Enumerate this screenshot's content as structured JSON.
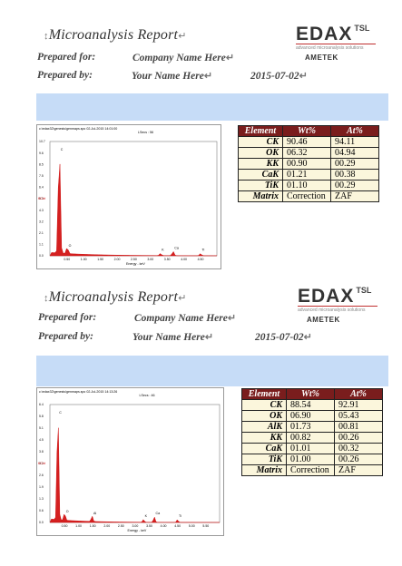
{
  "reports": [
    {
      "title": "Microanalysis Report",
      "prepared_for_label": "Prepared for:",
      "company": "Company Name Here",
      "prepared_by_label": "Prepared by:",
      "name": "Your Name Here",
      "date": "2015-07-02",
      "logo": {
        "brand": "EDAX",
        "suffix": "TSL",
        "tagline": "advanced microanalysis solutions",
        "parent": "AMETEK"
      },
      "spectrum_header": "c:\\edax32\\genesis\\genmaps.spc 02-Jul-2015 14:01:00",
      "spectrum_lsec": "LSecs : 56",
      "table": {
        "headers": [
          "Element",
          "Wt%",
          "At%"
        ],
        "rows": [
          [
            "CK",
            "90.46",
            "94.11"
          ],
          [
            "OK",
            "06.32",
            "04.94"
          ],
          [
            "KK",
            "00.90",
            "00.29"
          ],
          [
            "CaK",
            "01.21",
            "00.38"
          ],
          [
            "TiK",
            "01.10",
            "00.29"
          ],
          [
            "Matrix",
            "Correction",
            "ZAF"
          ]
        ]
      }
    },
    {
      "title": "Microanalysis Report",
      "prepared_for_label": "Prepared for:",
      "company": "Company Name Here",
      "prepared_by_label": "Prepared by:",
      "name": "Your Name Here",
      "date": "2015-07-02",
      "logo": {
        "brand": "EDAX",
        "suffix": "TSL",
        "tagline": "advanced microanalysis solutions",
        "parent": "AMETEK"
      },
      "spectrum_header": "c:\\edax32\\genesis\\genmaps.spc 02-Jul-2015 14:13:26",
      "spectrum_lsec": "LSecs : 46",
      "table": {
        "headers": [
          "Element",
          "Wt%",
          "At%"
        ],
        "rows": [
          [
            "CK",
            "88.54",
            "92.91"
          ],
          [
            "OK",
            "06.90",
            "05.43"
          ],
          [
            "AlK",
            "01.73",
            "00.81"
          ],
          [
            "KK",
            "00.82",
            "00.26"
          ],
          [
            "CaK",
            "01.01",
            "00.32"
          ],
          [
            "TiK",
            "01.00",
            "00.26"
          ],
          [
            "Matrix",
            "Correction",
            "ZAF"
          ]
        ]
      }
    }
  ],
  "chart_data": [
    {
      "type": "line",
      "xlabel": "Energy - keV",
      "ylabel": "KCnt",
      "xlim": [
        0,
        5.0
      ],
      "ylim": [
        0,
        10.7
      ],
      "x_ticks": [
        "0.50",
        "1.00",
        "1.50",
        "2.00",
        "2.50",
        "3.00",
        "3.50",
        "4.00",
        "4.50"
      ],
      "y_ticks": [
        "10.7",
        "9.6",
        "8.5",
        "7.5",
        "6.4",
        "5.3",
        "4.3",
        "3.2",
        "2.1",
        "1.1",
        "0.0"
      ],
      "peaks": [
        {
          "label": "C",
          "x": 0.28,
          "y": 10.7
        },
        {
          "label": "O",
          "x": 0.52,
          "y": 0.6
        },
        {
          "label": "K",
          "x": 3.31,
          "y": 0.2
        },
        {
          "label": "Ca",
          "x": 3.69,
          "y": 0.4
        },
        {
          "label": "Ti",
          "x": 4.51,
          "y": 0.2
        }
      ]
    },
    {
      "type": "line",
      "xlabel": "Energy - keV",
      "ylabel": "KCnt",
      "xlim": [
        0,
        6.0
      ],
      "ylim": [
        0,
        6.4
      ],
      "x_ticks": [
        "0.50",
        "1.00",
        "1.50",
        "2.00",
        "2.50",
        "3.00",
        "3.50",
        "4.00",
        "4.50",
        "5.00",
        "5.50"
      ],
      "y_ticks": [
        "6.4",
        "5.8",
        "5.1",
        "4.5",
        "3.8",
        "3.2",
        "2.6",
        "1.9",
        "1.3",
        "0.6",
        "0.0"
      ],
      "peaks": [
        {
          "label": "C",
          "x": 0.28,
          "y": 6.4
        },
        {
          "label": "O",
          "x": 0.52,
          "y": 0.4
        },
        {
          "label": "Al",
          "x": 1.49,
          "y": 0.3
        },
        {
          "label": "K",
          "x": 3.31,
          "y": 0.15
        },
        {
          "label": "Ca",
          "x": 3.69,
          "y": 0.3
        },
        {
          "label": "Ti",
          "x": 4.51,
          "y": 0.15
        }
      ]
    }
  ]
}
